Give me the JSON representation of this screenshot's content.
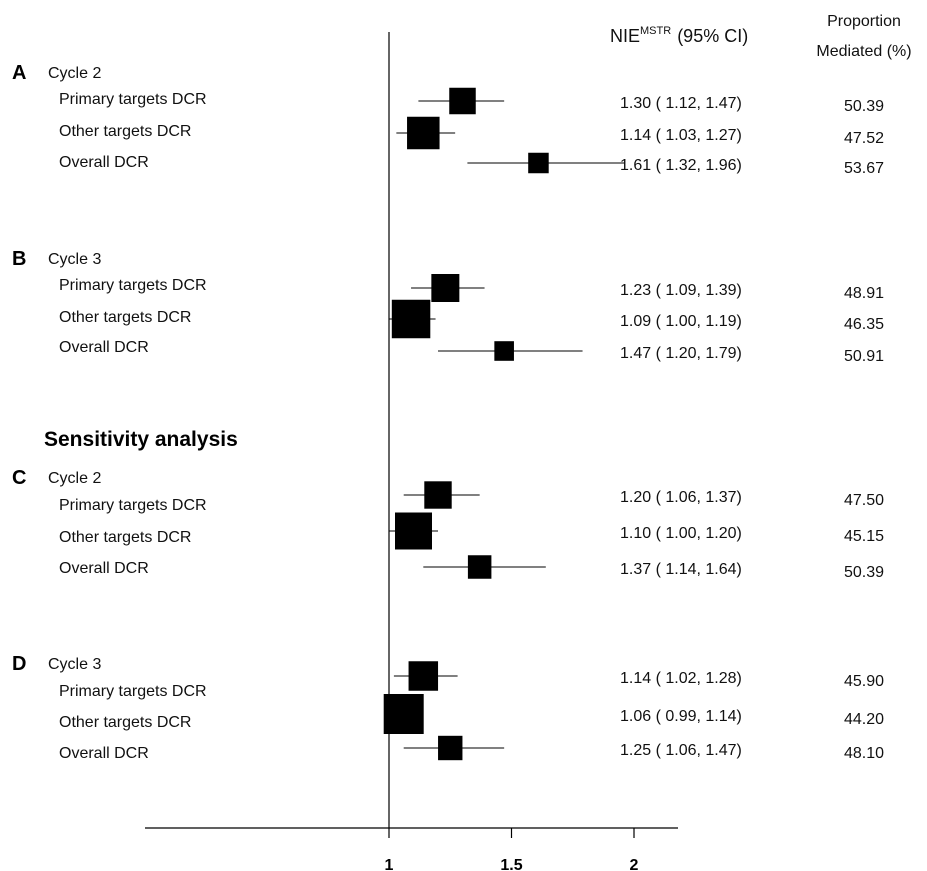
{
  "headers": {
    "nie": "NIE",
    "nie_sup": "MSTR",
    "nie_ci": "(95% CI)",
    "proportion_line1": "Proportion",
    "proportion_line2": "Mediated (%)"
  },
  "sensitivity_title": "Sensitivity analysis",
  "chart_data": {
    "type": "forest",
    "reference_line": 1,
    "x_ticks": [
      {
        "value": 1,
        "label": "1"
      },
      {
        "value": 1.5,
        "label": "1.5"
      },
      {
        "value": 2,
        "label": "2"
      }
    ],
    "panels": [
      {
        "letter": "A",
        "title": "Cycle 2",
        "rows": [
          {
            "label": "Primary targets DCR",
            "est": 1.3,
            "lo": 1.12,
            "hi": 1.47,
            "ci_text": "1.30 ( 1.12, 1.47)",
            "pm": "50.39",
            "weight": 0.55
          },
          {
            "label": "Other targets DCR",
            "est": 1.14,
            "lo": 1.03,
            "hi": 1.27,
            "ci_text": "1.14 ( 1.03, 1.27)",
            "pm": "47.52",
            "weight": 0.75
          },
          {
            "label": "Overall DCR",
            "est": 1.61,
            "lo": 1.32,
            "hi": 1.96,
            "ci_text": "1.61 ( 1.32, 1.96)",
            "pm": "53.67",
            "weight": 0.35
          }
        ]
      },
      {
        "letter": "B",
        "title": "Cycle 3",
        "rows": [
          {
            "label": "Primary targets DCR",
            "est": 1.23,
            "lo": 1.09,
            "hi": 1.39,
            "ci_text": "1.23 ( 1.09, 1.39)",
            "pm": "48.91",
            "weight": 0.6
          },
          {
            "label": "Other targets DCR",
            "est": 1.09,
            "lo": 1.0,
            "hi": 1.19,
            "ci_text": "1.09 ( 1.00, 1.19)",
            "pm": "46.35",
            "weight": 0.95
          },
          {
            "label": "Overall DCR",
            "est": 1.47,
            "lo": 1.2,
            "hi": 1.79,
            "ci_text": "1.47 ( 1.20, 1.79)",
            "pm": "50.91",
            "weight": 0.32
          }
        ]
      },
      {
        "letter": "C",
        "title": "Cycle 2",
        "rows": [
          {
            "label": "Primary targets DCR",
            "est": 1.2,
            "lo": 1.06,
            "hi": 1.37,
            "ci_text": "1.20 ( 1.06, 1.37)",
            "pm": "47.50",
            "weight": 0.58
          },
          {
            "label": "Other targets DCR",
            "est": 1.1,
            "lo": 1.0,
            "hi": 1.2,
            "ci_text": "1.10 ( 1.00, 1.20)",
            "pm": "45.15",
            "weight": 0.9
          },
          {
            "label": "Overall DCR",
            "est": 1.37,
            "lo": 1.14,
            "hi": 1.64,
            "ci_text": "1.37 ( 1.14, 1.64)",
            "pm": "50.39",
            "weight": 0.45
          }
        ]
      },
      {
        "letter": "D",
        "title": "Cycle 3",
        "rows": [
          {
            "label": "Primary targets DCR",
            "est": 1.14,
            "lo": 1.02,
            "hi": 1.28,
            "ci_text": "1.14 ( 1.02, 1.28)",
            "pm": "45.90",
            "weight": 0.65
          },
          {
            "label": "Other targets DCR",
            "est": 1.06,
            "lo": 0.99,
            "hi": 1.14,
            "ci_text": "1.06 ( 0.99, 1.14)",
            "pm": "44.20",
            "weight": 1.0
          },
          {
            "label": "Overall DCR",
            "est": 1.25,
            "lo": 1.06,
            "hi": 1.47,
            "ci_text": "1.25 ( 1.06, 1.47)",
            "pm": "48.10",
            "weight": 0.48
          }
        ]
      }
    ]
  }
}
